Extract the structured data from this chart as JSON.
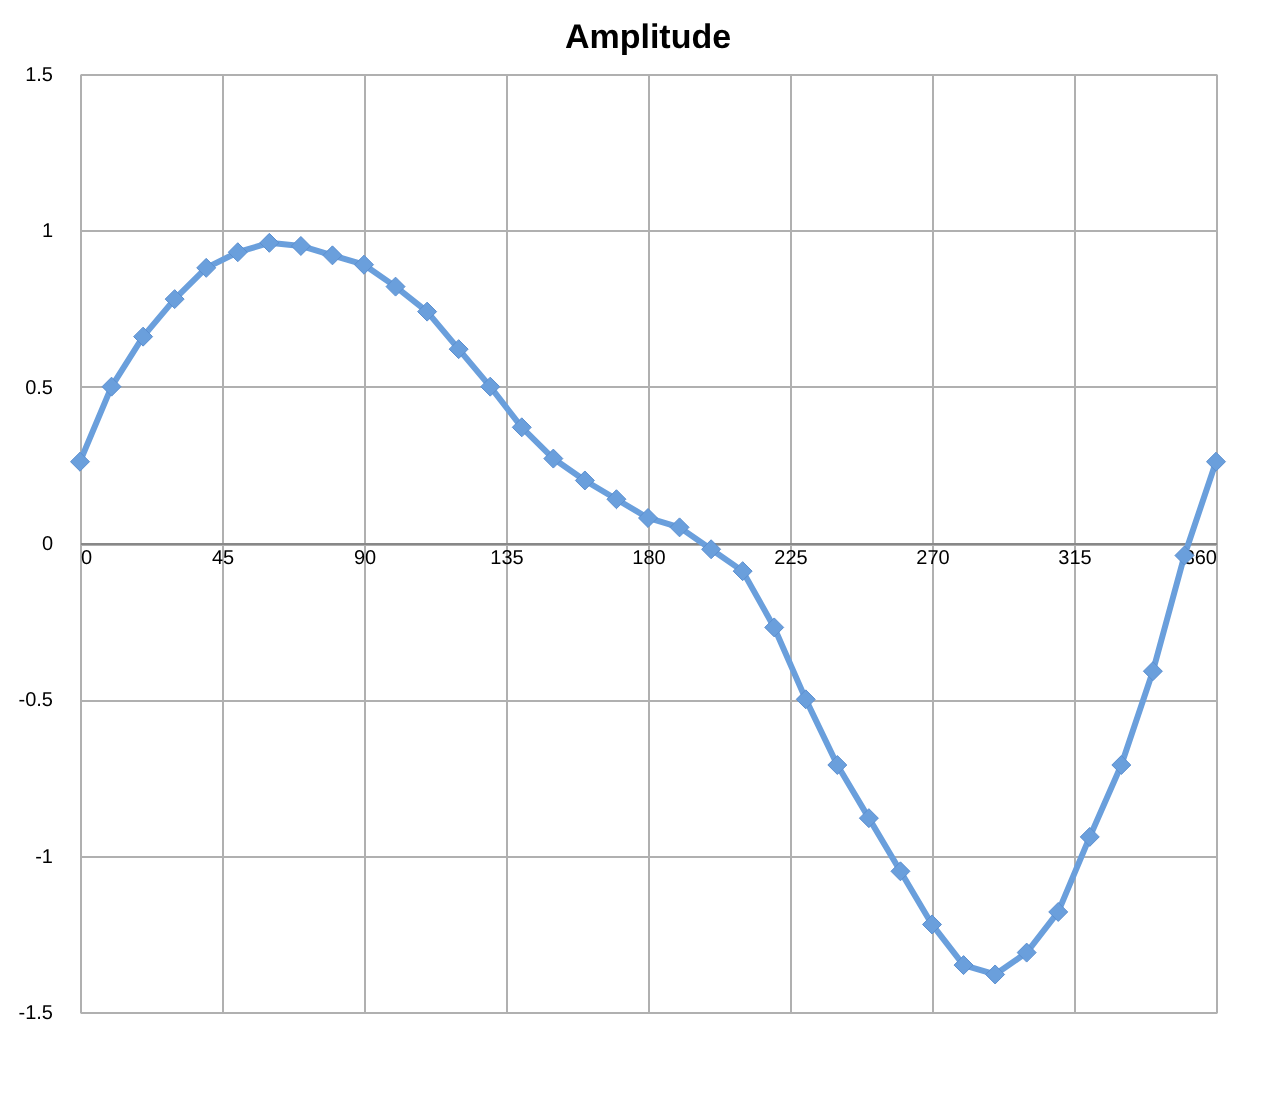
{
  "chart_data": {
    "type": "line",
    "title": "Amplitude",
    "x": [
      0,
      10,
      20,
      30,
      40,
      50,
      60,
      70,
      80,
      90,
      100,
      110,
      120,
      130,
      140,
      150,
      160,
      170,
      180,
      190,
      200,
      210,
      220,
      230,
      240,
      250,
      260,
      270,
      280,
      290,
      300,
      310,
      320,
      330,
      340,
      350,
      360
    ],
    "series": [
      {
        "color": "#6a9fdc",
        "values": [
          0.26,
          0.5,
          0.66,
          0.78,
          0.88,
          0.93,
          0.96,
          0.95,
          0.92,
          0.89,
          0.82,
          0.74,
          0.62,
          0.5,
          0.37,
          0.27,
          0.2,
          0.14,
          0.08,
          0.05,
          -0.02,
          -0.09,
          -0.27,
          -0.5,
          -0.71,
          -0.88,
          -1.05,
          -1.22,
          -1.35,
          -1.38,
          -1.31,
          -1.18,
          -0.94,
          -0.71,
          -0.41,
          -0.04,
          0.26
        ]
      }
    ],
    "xlim": [
      0,
      360
    ],
    "xticks": [
      0,
      45,
      90,
      135,
      180,
      225,
      270,
      315,
      360
    ],
    "ylim": [
      -1.5,
      1.5
    ],
    "yticks": [
      -1.5,
      -1,
      -0.5,
      0,
      0.5,
      1,
      1.5
    ],
    "grid": true,
    "marker": "diamond",
    "line_style": "solid"
  }
}
